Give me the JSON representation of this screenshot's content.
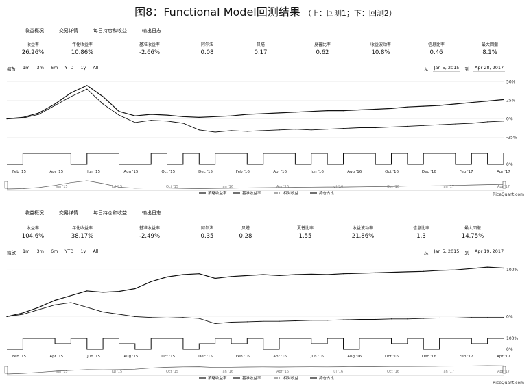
{
  "title": "图8：Functional Model回测结果",
  "subtitle": "（上：回测1；下：回测2）",
  "tabs": [
    "收益概况",
    "交易详情",
    "每日持仓和收益",
    "输出日志"
  ],
  "zoom": {
    "label": "缩放",
    "options": [
      "1m",
      "3m",
      "6m",
      "YTD",
      "1y",
      "All"
    ]
  },
  "credit": "RiceQuant.com",
  "legend": [
    "策略收益率",
    "基准收益率",
    "相对收益",
    "持仓占比"
  ],
  "colors": {
    "line": "#111111",
    "relative": "#777777"
  },
  "panels": [
    {
      "stat_labels": [
        "收益率",
        "年化收益率",
        "基准收益率",
        "阿尔法",
        "贝塔",
        "夏普比率",
        "收益波动率",
        "信息比率",
        "最大回撤"
      ],
      "stat_values": [
        "26.26%",
        "10.86%",
        "-2.66%",
        "0.08",
        "0.17",
        "0.62",
        "10.8%",
        "0.46",
        "8.1%"
      ],
      "range_from_label": "从",
      "range_from": "Jan 5, 2015",
      "range_to_label": "到",
      "range_to": "Apr 28, 2017",
      "chart_data": {
        "type": "line",
        "x_ticks": [
          "Feb '15",
          "Apr '15",
          "Jun '15",
          "Aug '15",
          "Oct '15",
          "Dec '15",
          "Feb '16",
          "Apr '16",
          "Jun '16",
          "Aug '16",
          "Oct '16",
          "Dec '16",
          "Feb '17",
          "Apr '17"
        ],
        "nav_ticks": [
          "Jun '15",
          "Jul '15",
          "Oct '15",
          "Jan '16",
          "Apr '16",
          "Jul '16",
          "Oct '16",
          "Jan '17",
          "Apr '17"
        ],
        "y_ticks": [
          "50%",
          "25%",
          "0%",
          "-25%"
        ],
        "position_ticks": [
          "0%"
        ],
        "ylim": [
          -30,
          55
        ],
        "series": [
          {
            "name": "策略收益率",
            "values": [
              0,
              2,
              8,
              20,
              35,
              45,
              30,
              10,
              4,
              6,
              5,
              3,
              2,
              3,
              4,
              6,
              7,
              8,
              9,
              10,
              11,
              11,
              12,
              13,
              14,
              16,
              17,
              18,
              20,
              22,
              24,
              26
            ]
          },
          {
            "name": "基准收益率",
            "values": [
              0,
              1,
              6,
              18,
              30,
              40,
              20,
              5,
              -5,
              -2,
              -3,
              -6,
              -15,
              -18,
              -16,
              -17,
              -16,
              -15,
              -14,
              -15,
              -14,
              -13,
              -12,
              -12,
              -11,
              -10,
              -9,
              -8,
              -7,
              -6,
              -4,
              -3
            ]
          }
        ],
        "position": [
          0,
          100,
          100,
          100,
          0,
          100,
          100,
          0,
          0,
          100,
          0,
          100,
          0,
          100,
          100,
          0,
          100,
          100,
          0,
          100,
          0,
          100,
          100,
          0,
          100,
          0,
          100,
          100,
          0,
          100,
          0,
          100
        ]
      }
    },
    {
      "stat_labels": [
        "收益率",
        "年化收益率",
        "基准收益率",
        "阿尔法",
        "贝塔",
        "夏普比率",
        "收益波动率",
        "信息比率",
        "最大回撤"
      ],
      "stat_values": [
        "104.6%",
        "38.17%",
        "-2.49%",
        "0.35",
        "0.28",
        "1.55",
        "21.86%",
        "1.3",
        "14.75%"
      ],
      "range_from_label": "从",
      "range_from": "Jan 5, 2015",
      "range_to_label": "到",
      "range_to": "Apr 19, 2017",
      "chart_data": {
        "type": "line",
        "x_ticks": [
          "Feb '15",
          "Apr '15",
          "Jun '15",
          "Aug '15",
          "Oct '15",
          "Dec '15",
          "Feb '16",
          "Apr '16",
          "Jun '16",
          "Aug '16",
          "Oct '16",
          "Dec '16",
          "Feb '17",
          "Apr '17"
        ],
        "nav_ticks": [
          "Jun '15",
          "Jul '15",
          "Oct '15",
          "Jan '16",
          "Apr '16",
          "Jul '16",
          "Oct '16",
          "Jan '17",
          "Apr '17"
        ],
        "y_ticks": [
          "100%",
          "0%"
        ],
        "position_ticks": [
          "100%",
          "0%"
        ],
        "ylim": [
          -20,
          115
        ],
        "series": [
          {
            "name": "策略收益率",
            "values": [
              0,
              8,
              20,
              35,
              45,
              55,
              52,
              54,
              60,
              75,
              85,
              90,
              92,
              82,
              86,
              88,
              90,
              88,
              90,
              91,
              90,
              92,
              93,
              94,
              95,
              96,
              97,
              99,
              100,
              103,
              106,
              104
            ]
          },
          {
            "name": "基准收益率",
            "values": [
              0,
              5,
              15,
              25,
              30,
              20,
              10,
              5,
              0,
              -2,
              -3,
              -2,
              -4,
              -15,
              -12,
              -11,
              -10,
              -10,
              -9,
              -8,
              -8,
              -7,
              -6,
              -6,
              -5,
              -5,
              -4,
              -3,
              -3,
              -2,
              -2,
              -2
            ]
          }
        ],
        "position": [
          0,
          100,
          100,
          50,
          100,
          0,
          100,
          50,
          0,
          100,
          100,
          0,
          50,
          100,
          50,
          100,
          0,
          100,
          100,
          50,
          100,
          0,
          100,
          100,
          50,
          100,
          0,
          100,
          100,
          50,
          100,
          100
        ]
      }
    }
  ]
}
